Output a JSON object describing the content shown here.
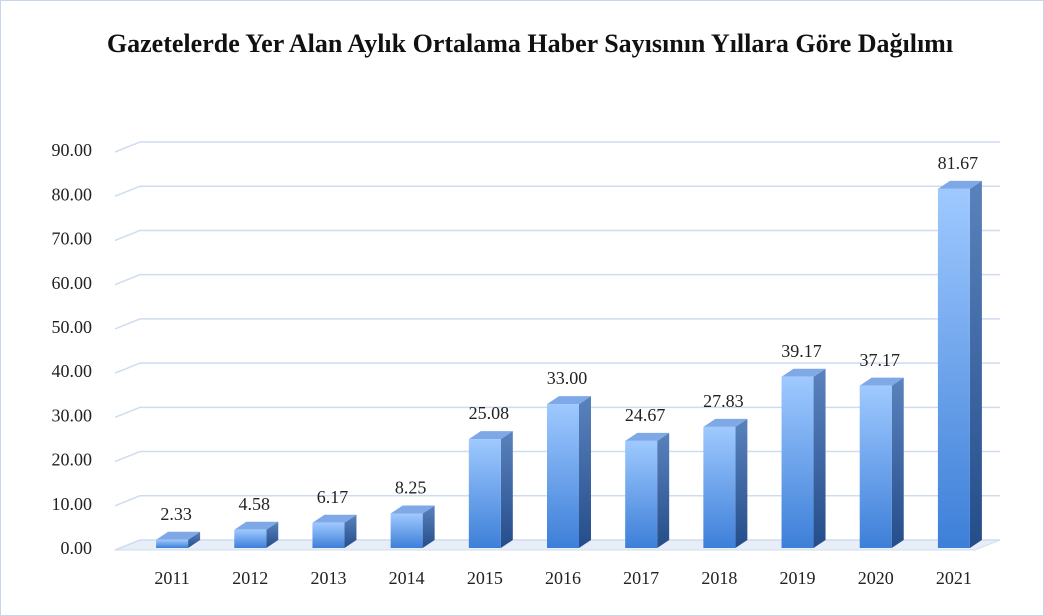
{
  "chart_data": {
    "type": "bar3d",
    "title": "Gazetelerde Yer Alan Aylık Ortalama Haber Sayısının Yıllara Göre Dağılımı",
    "categories": [
      "2011",
      "2012",
      "2013",
      "2014",
      "2015",
      "2016",
      "2017",
      "2018",
      "2019",
      "2020",
      "2021"
    ],
    "values": [
      2.33,
      4.58,
      6.17,
      8.25,
      25.08,
      33.0,
      24.67,
      27.83,
      39.17,
      37.17,
      81.67
    ],
    "value_labels": [
      "2.33",
      "4.58",
      "6.17",
      "8.25",
      "25.08",
      "33.00",
      "24.67",
      "27.83",
      "39.17",
      "37.17",
      "81.67"
    ],
    "color": "#5b9bea",
    "ylim": [
      0,
      90
    ],
    "yticks": [
      {
        "value": 0,
        "label": "0.00"
      },
      {
        "value": 10,
        "label": "10.00"
      },
      {
        "value": 20,
        "label": "20.00"
      },
      {
        "value": 30,
        "label": "30.00"
      },
      {
        "value": 40,
        "label": "40.00"
      },
      {
        "value": 50,
        "label": "50.00"
      },
      {
        "value": 60,
        "label": "60.00"
      },
      {
        "value": 70,
        "label": "70.00"
      },
      {
        "value": 80,
        "label": "80.00"
      },
      {
        "value": 90,
        "label": "90.00"
      }
    ],
    "grid": true
  }
}
